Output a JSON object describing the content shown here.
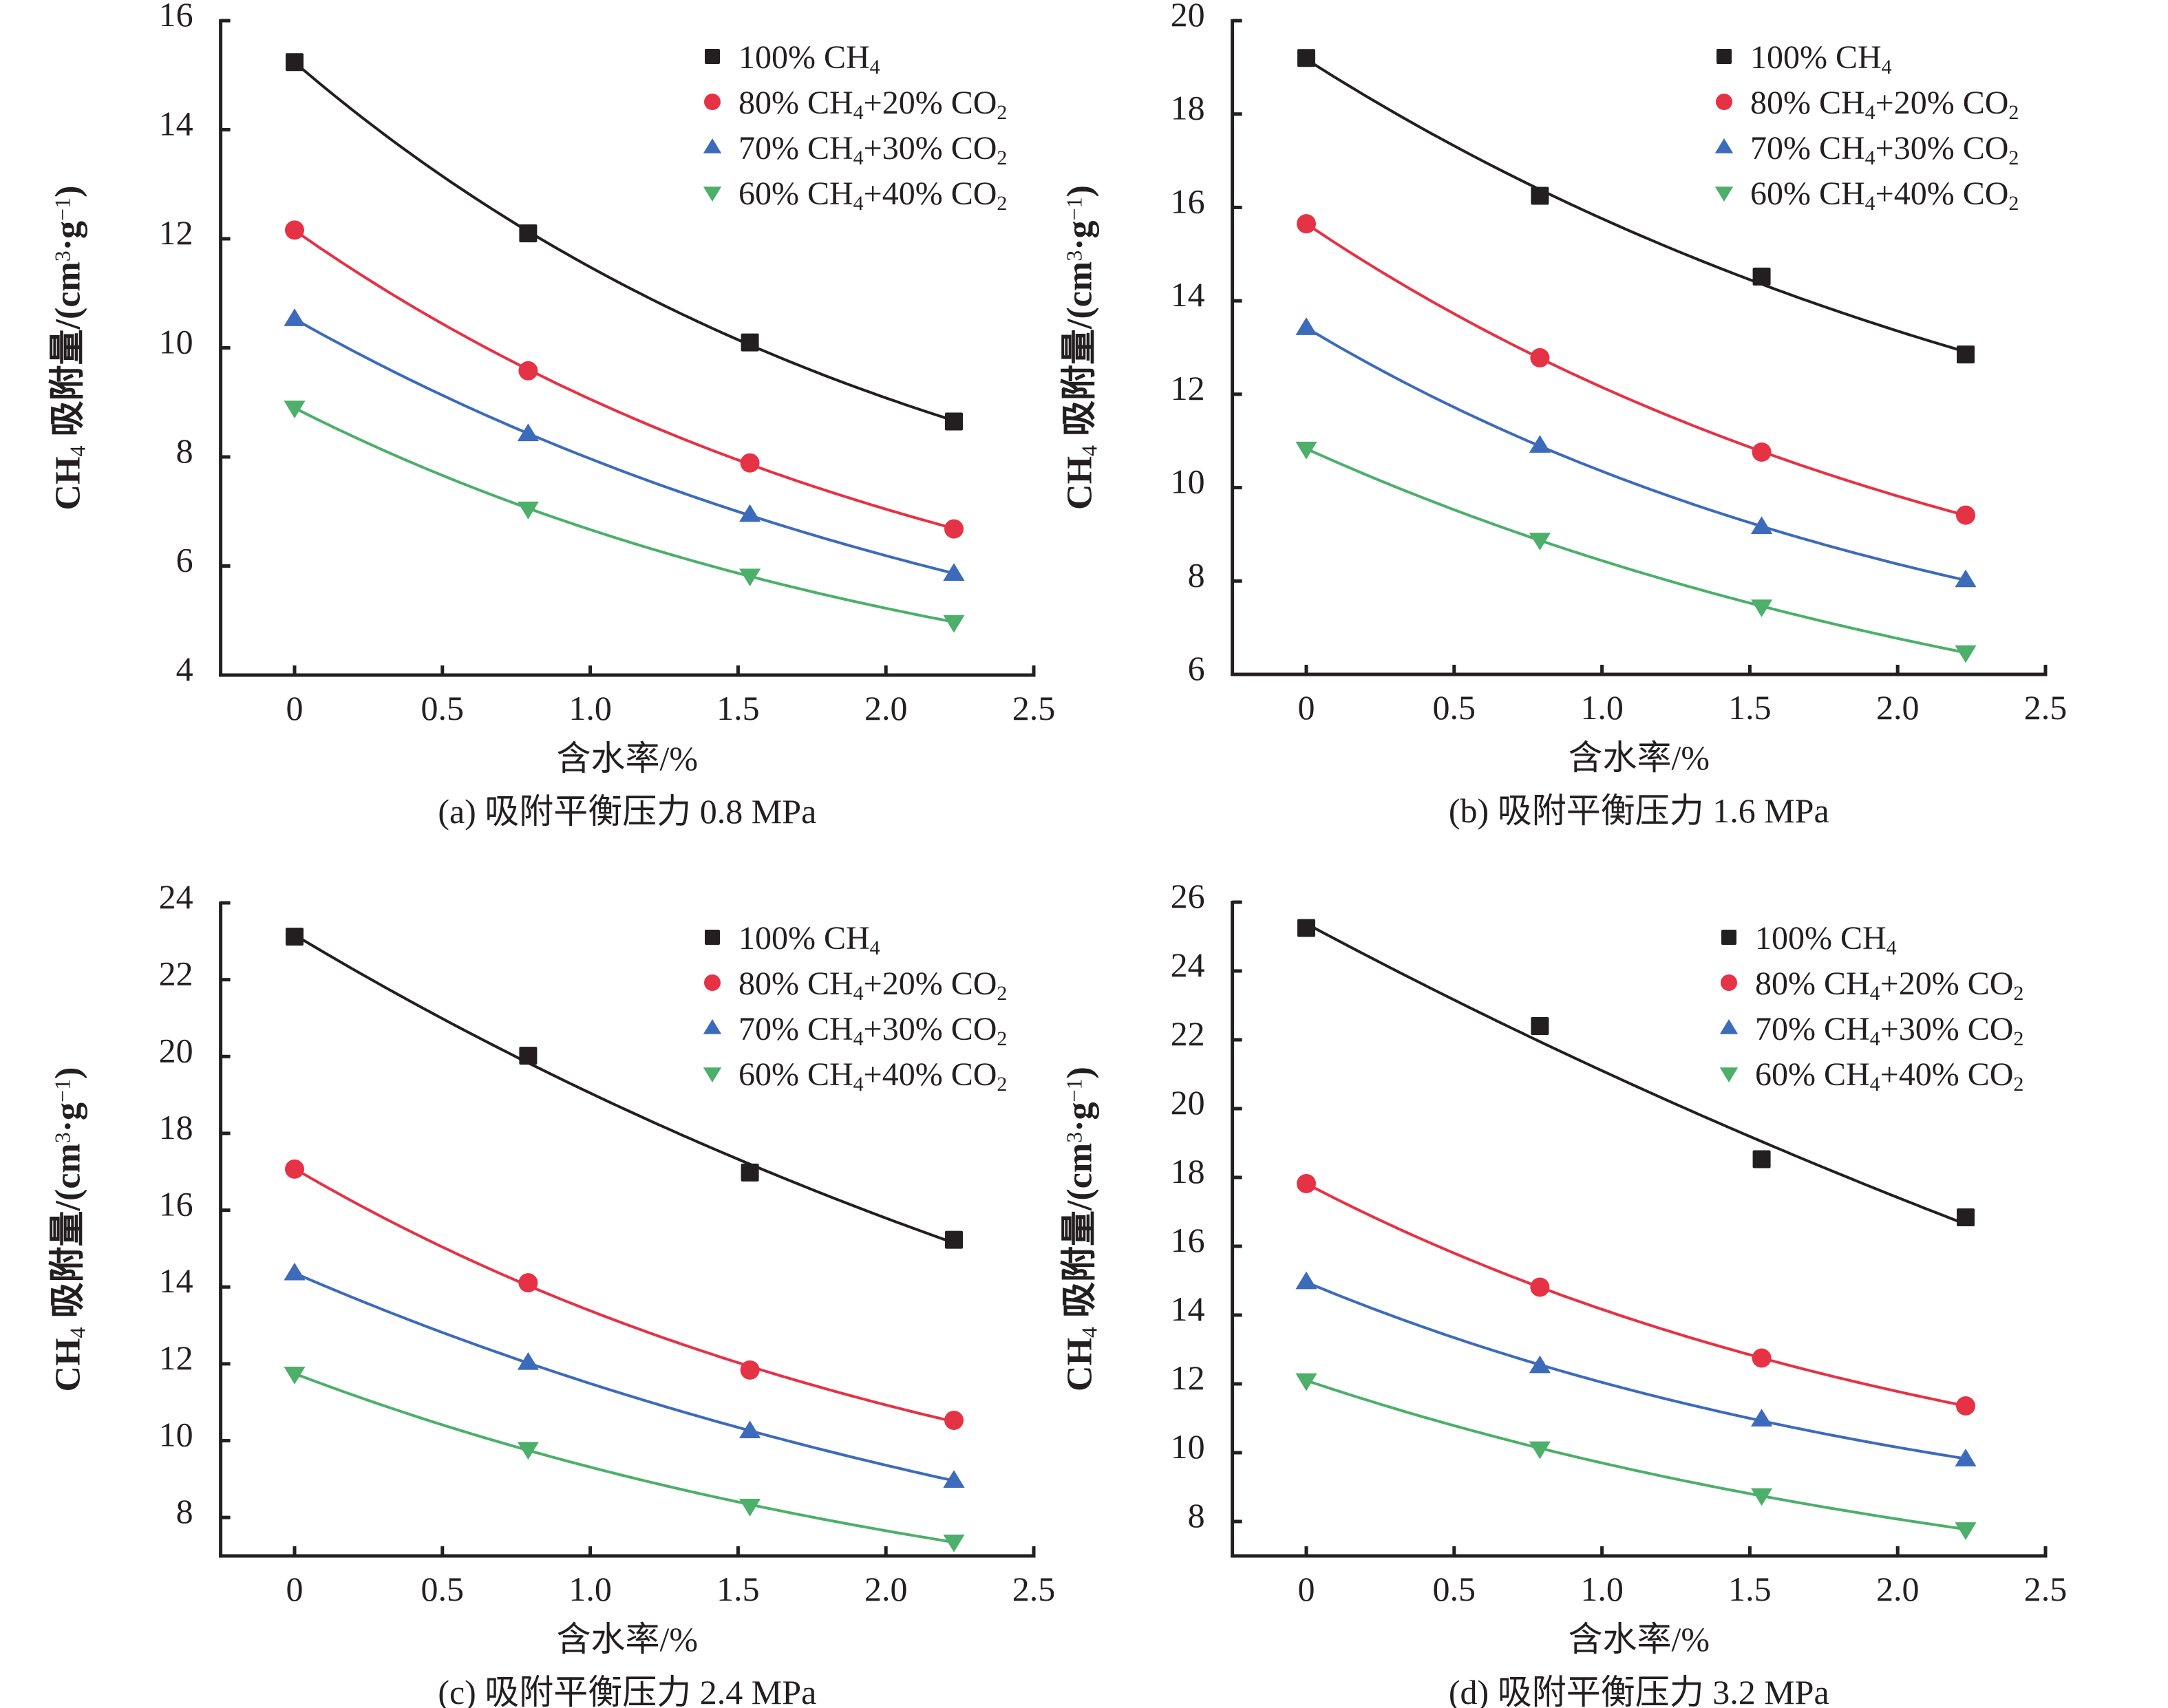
{
  "figure": {
    "ylabel_parts": {
      "species": "CH",
      "species_sub": "4",
      "text": " 吸附量/(cm",
      "sup3": "3",
      "dot": "·g",
      "supneg1": "−1",
      "close": ")"
    },
    "xlabel": "含水率/%"
  },
  "legend": [
    {
      "key": "ch4_100",
      "parts": [
        "100% CH",
        "4",
        "",
        ""
      ],
      "color": "#231f20",
      "marker": "square"
    },
    {
      "key": "ch4_80",
      "parts": [
        "80% CH",
        "4",
        "+20% CO",
        "2"
      ],
      "color": "#e63245",
      "marker": "circle"
    },
    {
      "key": "ch4_70",
      "parts": [
        "70% CH",
        "4",
        "+30% CO",
        "2"
      ],
      "color": "#3d6bbb",
      "marker": "triangle-up"
    },
    {
      "key": "ch4_60",
      "parts": [
        "60% CH",
        "4",
        "+40% CO",
        "2"
      ],
      "color": "#4caf6a",
      "marker": "triangle-down"
    }
  ],
  "chart_data": [
    {
      "type": "scatter",
      "panel": "a",
      "title": "(a) 吸附平衡压力 0.8 MPa",
      "xlabel": "含水率/%",
      "ylabel": "CH4 吸附量/(cm3·g−1)",
      "xlim": [
        -0.25,
        2.5
      ],
      "ylim": [
        4,
        16
      ],
      "xticks": [
        0,
        0.5,
        1.0,
        1.5,
        2.0,
        2.5
      ],
      "xtick_labels": [
        "0",
        "0.5",
        "1.0",
        "1.5",
        "2.0",
        "2.5"
      ],
      "yticks": [
        4,
        6,
        8,
        10,
        12,
        14,
        16
      ],
      "ytick_labels": [
        "4",
        "6",
        "8",
        "10",
        "12",
        "14",
        "16"
      ],
      "grid": false,
      "legend_position": "top-right",
      "x": [
        0,
        0.79,
        1.54,
        2.23
      ],
      "series": [
        {
          "name": "100% CH4",
          "values": [
            15.24,
            12.1,
            10.1,
            8.65
          ],
          "fit": "exponential"
        },
        {
          "name": "80% CH4+20% CO2",
          "values": [
            12.16,
            9.58,
            7.89,
            6.68
          ],
          "fit": "exponential"
        },
        {
          "name": "70% CH4+30% CO2",
          "values": [
            10.53,
            8.42,
            6.94,
            5.86
          ],
          "fit": "exponential"
        },
        {
          "name": "60% CH4+40% CO2",
          "values": [
            8.9,
            7.05,
            5.82,
            4.97
          ],
          "fit": "exponential"
        }
      ]
    },
    {
      "type": "scatter",
      "panel": "b",
      "title": "(b) 吸附平衡压力 1.6 MPa",
      "xlabel": "含水率/%",
      "ylabel": "CH4 吸附量/(cm3·g−1)",
      "xlim": [
        -0.25,
        2.5
      ],
      "ylim": [
        6,
        20
      ],
      "xticks": [
        0,
        0.5,
        1.0,
        1.5,
        2.0,
        2.5
      ],
      "xtick_labels": [
        "0",
        "0.5",
        "1.0",
        "1.5",
        "2.0",
        "2.5"
      ],
      "yticks": [
        6,
        8,
        10,
        12,
        14,
        16,
        18,
        20
      ],
      "ytick_labels": [
        "6",
        "8",
        "10",
        "12",
        "14",
        "16",
        "18",
        "20"
      ],
      "grid": false,
      "legend_position": "top-right",
      "x": [
        0,
        0.79,
        1.54,
        2.23
      ],
      "series": [
        {
          "name": "100% CH4",
          "values": [
            19.2,
            16.25,
            14.52,
            12.85
          ],
          "fit": "exponential"
        },
        {
          "name": "80% CH4+20% CO2",
          "values": [
            15.65,
            12.78,
            10.76,
            9.41
          ],
          "fit": "exponential"
        },
        {
          "name": "70% CH4+30% CO2",
          "values": [
            13.42,
            10.9,
            9.16,
            8.02
          ],
          "fit": "exponential"
        },
        {
          "name": "60% CH4+40% CO2",
          "values": [
            10.83,
            8.88,
            7.45,
            6.47
          ],
          "fit": "exponential"
        }
      ]
    },
    {
      "type": "scatter",
      "panel": "c",
      "title": "(c) 吸附平衡压力 2.4 MPa",
      "xlabel": "含水率/%",
      "ylabel": "CH4 吸附量/(cm3·g−1)",
      "xlim": [
        -0.25,
        2.5
      ],
      "ylim": [
        7,
        24
      ],
      "xticks": [
        0,
        0.5,
        1.0,
        1.5,
        2.0,
        2.5
      ],
      "xtick_labels": [
        "0",
        "0.5",
        "1.0",
        "1.5",
        "2.0",
        "2.5"
      ],
      "yticks": [
        8,
        10,
        12,
        14,
        16,
        18,
        20,
        22,
        24
      ],
      "ytick_labels": [
        "8",
        "10",
        "12",
        "14",
        "16",
        "18",
        "20",
        "22",
        "24"
      ],
      "grid": false,
      "legend_position": "top-right",
      "x": [
        0,
        0.79,
        1.54,
        2.23
      ],
      "series": [
        {
          "name": "100% CH4",
          "values": [
            23.12,
            20.02,
            16.98,
            15.23
          ],
          "fit": "exponential"
        },
        {
          "name": "80% CH4+20% CO2",
          "values": [
            17.07,
            14.11,
            11.84,
            10.53
          ],
          "fit": "exponential"
        },
        {
          "name": "70% CH4+30% CO2",
          "values": [
            14.36,
            12.03,
            10.25,
            8.96
          ],
          "fit": "exponential"
        },
        {
          "name": "60% CH4+40% CO2",
          "values": [
            11.74,
            9.78,
            8.3,
            7.37
          ],
          "fit": "exponential"
        }
      ]
    },
    {
      "type": "scatter",
      "panel": "d",
      "title": "(d) 吸附平衡压力 3.2 MPa",
      "xlabel": "含水率/%",
      "ylabel": "CH4 吸附量/(cm3·g−1)",
      "xlim": [
        -0.25,
        2.5
      ],
      "ylim": [
        7,
        26
      ],
      "xticks": [
        0,
        0.5,
        1.0,
        1.5,
        2.0,
        2.5
      ],
      "xtick_labels": [
        "0",
        "0.5",
        "1.0",
        "1.5",
        "2.0",
        "2.5"
      ],
      "yticks": [
        8,
        10,
        12,
        14,
        16,
        18,
        20,
        22,
        24,
        26
      ],
      "ytick_labels": [
        "8",
        "10",
        "12",
        "14",
        "16",
        "18",
        "20",
        "22",
        "24",
        "26"
      ],
      "grid": false,
      "legend_position": "top-right",
      "x": [
        0,
        0.79,
        1.54,
        2.23
      ],
      "series": [
        {
          "name": "100% CH4",
          "values": [
            25.25,
            22.4,
            18.53,
            16.84
          ],
          "fit": "exponential"
        },
        {
          "name": "80% CH4+20% CO2",
          "values": [
            17.82,
            14.81,
            12.75,
            11.36
          ],
          "fit": "exponential"
        },
        {
          "name": "70% CH4+30% CO2",
          "values": [
            14.96,
            12.52,
            10.97,
            9.81
          ],
          "fit": "exponential"
        },
        {
          "name": "60% CH4+40% CO2",
          "values": [
            12.1,
            10.12,
            8.76,
            7.77
          ],
          "fit": "exponential"
        }
      ]
    }
  ]
}
